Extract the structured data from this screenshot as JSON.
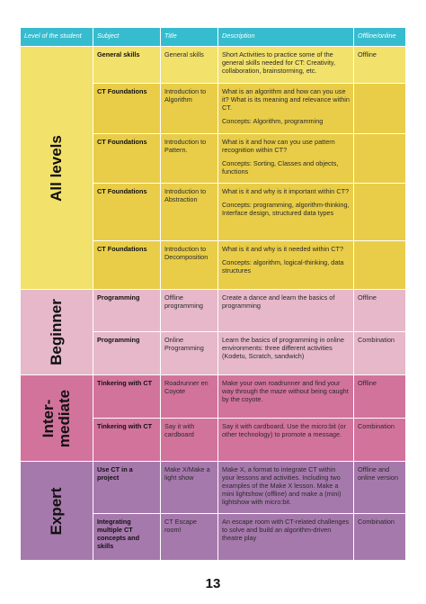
{
  "header": {
    "level": "Level of the student",
    "subject": "Subject",
    "title": "Title",
    "description": "Description",
    "mode": "Offline/online"
  },
  "levels": {
    "all": "All levels",
    "beginner": "Beginner",
    "inter_line1": "Inter-",
    "inter_line2": "mediate",
    "expert": "Expert"
  },
  "rows": [
    {
      "subject": "General skills",
      "title": "General skills",
      "desc": "Short Activities to practice some of the general skills needed for CT: Creativity, collaboration, brainstorming, etc.",
      "concepts": "",
      "mode": "Offline"
    },
    {
      "subject": "CT Foundations",
      "title": "Introduction to Algorithm",
      "desc": "What is an algorithm and how can you use it? What is its meaning and relevance within CT.",
      "concepts": "Concepts: Algorithm, programming",
      "mode": ""
    },
    {
      "subject": "CT Foundations",
      "title": "Introduction to Pattern.",
      "desc": "What is it and how can you use pattern recognition within CT?",
      "concepts": "Concepts: Sorting, Classes and objects, functions",
      "mode": ""
    },
    {
      "subject": "CT Foundations",
      "title": "Introduction to Abstraction",
      "desc": "What is it and why is it important within CT?",
      "concepts": "Concepts: programming, algorithm-thinking, Interface design, structured data types",
      "mode": ""
    },
    {
      "subject": "CT Foundations",
      "title": "Introduction to Decomposition",
      "desc": "What is it and why is it needed within CT?",
      "concepts": "Concepts: algorithm, logical-thinking, data structures",
      "mode": ""
    },
    {
      "subject": "Programming",
      "title": "Offline programming",
      "desc": "Create a dance and learn the basics of programming",
      "concepts": "",
      "mode": "Offline"
    },
    {
      "subject": "Programming",
      "title": "Online Programming",
      "desc": "Learn the basics of programming in online environments: three different activities (Kodetu, Scratch, sandwich)",
      "concepts": "",
      "mode": "Combination"
    },
    {
      "subject": "Tinkering with CT",
      "title": "Roadrunner en Coyote",
      "desc": "Make your own roadrunner and find your way through the maze without being caught by the coyote.",
      "concepts": "",
      "mode": "Offline"
    },
    {
      "subject": "Tinkering with CT",
      "title": "Say it with cardboard",
      "desc": "Say it with cardboard. Use the micro:bit (or other technology) to promote a message.",
      "concepts": "",
      "mode": "Combination"
    },
    {
      "subject": "Use CT in a project",
      "title": "Make X/Make a light show",
      "desc": "Make X, a format to integrate CT within your lessons and activities. Including two examples of the Make X lesson. Make a mini lightshow (offline) and make a (mini) lightshow with micro:bit.",
      "concepts": "",
      "mode": "Offline and online version"
    },
    {
      "subject": "Integrating multiple CT concepts and skills",
      "title": "CT Escape room!",
      "desc": "An escape room with CT-related challenges to solve and build an algorithm-driven theatre play",
      "concepts": "",
      "mode": "Combination"
    }
  ],
  "page_number": "13",
  "colors": {
    "header": "#36bccf",
    "all_levels_light": "#f2e16a",
    "all_levels_dark": "#e9cd48",
    "beginner": "#e6b8c9",
    "intermediate": "#d2739c",
    "expert": "#a679ac"
  }
}
